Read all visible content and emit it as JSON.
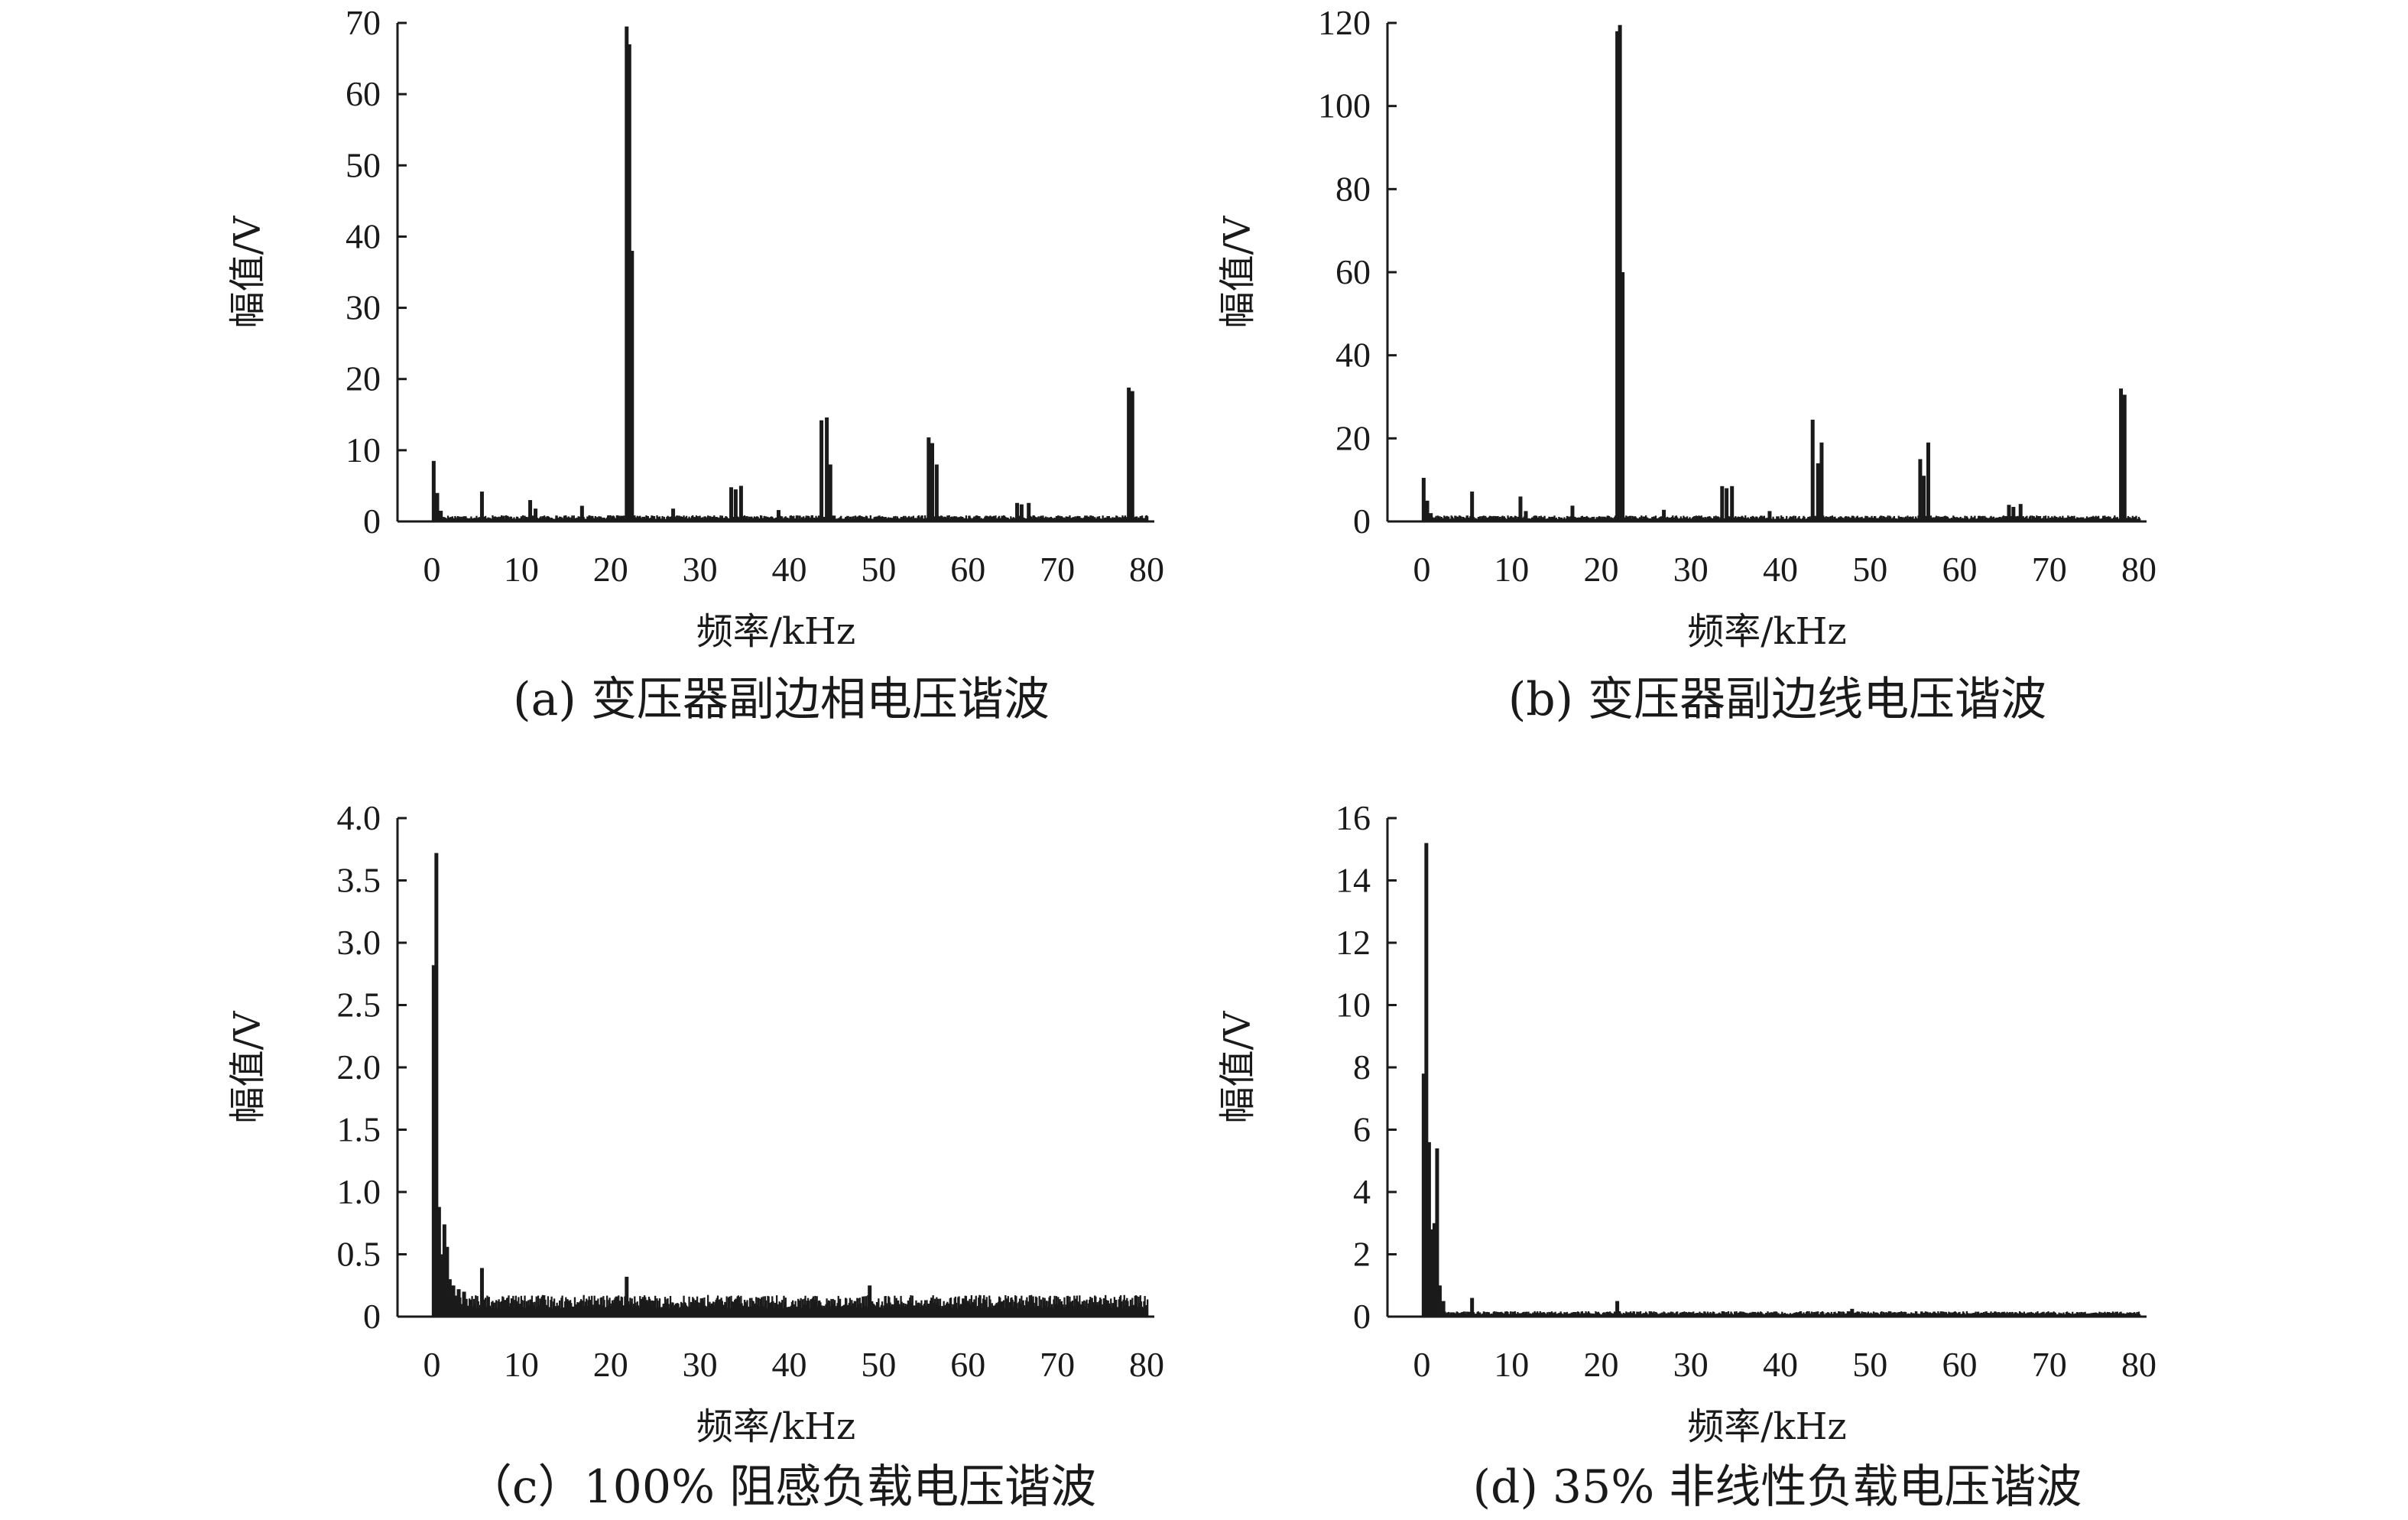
{
  "chart_data": [
    {
      "type": "bar",
      "caption": "(a) 变压器副边相电压谐波",
      "xlabel": "频率/kHz",
      "ylabel": "幅值/V",
      "xlim": [
        0,
        80
      ],
      "ylim": [
        0,
        70
      ],
      "xticks": [
        "0",
        "10",
        "20",
        "30",
        "40",
        "50",
        "60",
        "70",
        "80"
      ],
      "yticks": [
        "0",
        "10",
        "20",
        "30",
        "40",
        "50",
        "60",
        "70"
      ],
      "x": [
        0.2,
        0.6,
        1.0,
        5.6,
        11.0,
        11.6,
        16.8,
        21.8,
        22.1,
        22.4,
        27.0,
        33.5,
        34.0,
        34.6,
        38.8,
        43.6,
        44.2,
        44.6,
        55.6,
        56.0,
        56.5,
        65.5,
        66.0,
        66.8,
        78.0,
        78.4
      ],
      "values": [
        8.5,
        4.0,
        1.5,
        4.2,
        3.0,
        1.8,
        2.2,
        69.5,
        67.0,
        38.0,
        1.8,
        4.8,
        4.5,
        5.0,
        1.6,
        14.2,
        14.6,
        8.0,
        11.8,
        11.0,
        8.0,
        2.6,
        2.4,
        2.6,
        18.8,
        18.3
      ],
      "baseline": 0.6
    },
    {
      "type": "bar",
      "caption": "(b) 变压器副边线电压谐波",
      "xlabel": "频率/kHz",
      "ylabel": "幅值/V",
      "xlim": [
        0,
        80
      ],
      "ylim": [
        0,
        120
      ],
      "xticks": [
        "0",
        "10",
        "20",
        "30",
        "40",
        "50",
        "60",
        "70",
        "80"
      ],
      "yticks": [
        "0",
        "20",
        "40",
        "60",
        "80",
        "100",
        "120"
      ],
      "x": [
        0.2,
        0.6,
        1.0,
        5.6,
        11.0,
        11.6,
        16.8,
        21.8,
        22.1,
        22.4,
        27.0,
        33.5,
        34.0,
        34.6,
        38.8,
        43.6,
        44.2,
        44.6,
        55.6,
        56.0,
        56.5,
        65.5,
        66.0,
        66.8,
        78.0,
        78.4
      ],
      "values": [
        10.5,
        5.0,
        2.0,
        7.2,
        6.0,
        2.5,
        3.8,
        118.0,
        119.5,
        60.0,
        2.8,
        8.5,
        8.0,
        8.5,
        2.5,
        24.5,
        14.0,
        19.0,
        15.0,
        11.0,
        19.0,
        4.0,
        3.5,
        4.2,
        32.0,
        30.5
      ],
      "baseline": 1.0
    },
    {
      "type": "bar",
      "caption": "（c）100% 阻感负载电压谐波",
      "xlabel": "频率/kHz",
      "ylabel": "幅值/V",
      "xlim": [
        0,
        80
      ],
      "ylim": [
        0,
        4.0
      ],
      "xticks": [
        "0",
        "10",
        "20",
        "30",
        "40",
        "50",
        "60",
        "70",
        "80"
      ],
      "yticks": [
        "0",
        "0.5",
        "1.0",
        "1.5",
        "2.0",
        "2.5",
        "3.0",
        "3.5",
        "4.0"
      ],
      "x": [
        0.2,
        0.5,
        0.8,
        1.1,
        1.4,
        1.7,
        2.0,
        2.4,
        3.0,
        3.6,
        5.6,
        21.8,
        49.0
      ],
      "values": [
        2.82,
        3.72,
        0.88,
        0.5,
        0.74,
        0.56,
        0.3,
        0.25,
        0.22,
        0.2,
        0.39,
        0.32,
        0.25
      ],
      "baseline": 0.12
    },
    {
      "type": "bar",
      "caption": "(d) 35% 非线性负载电压谐波",
      "xlabel": "频率/kHz",
      "ylabel": "幅值/V",
      "xlim": [
        0,
        80
      ],
      "ylim": [
        0,
        16
      ],
      "xticks": [
        "0",
        "10",
        "20",
        "30",
        "40",
        "50",
        "60",
        "70",
        "80"
      ],
      "yticks": [
        "0",
        "2",
        "4",
        "6",
        "8",
        "10",
        "12",
        "14",
        "16"
      ],
      "x": [
        0.2,
        0.5,
        0.8,
        1.1,
        1.4,
        1.7,
        2.0,
        2.4,
        5.6,
        21.8,
        48.0
      ],
      "values": [
        7.8,
        15.2,
        5.6,
        2.8,
        3.0,
        5.4,
        1.0,
        0.5,
        0.6,
        0.5,
        0.25
      ],
      "baseline": 0.12
    }
  ]
}
